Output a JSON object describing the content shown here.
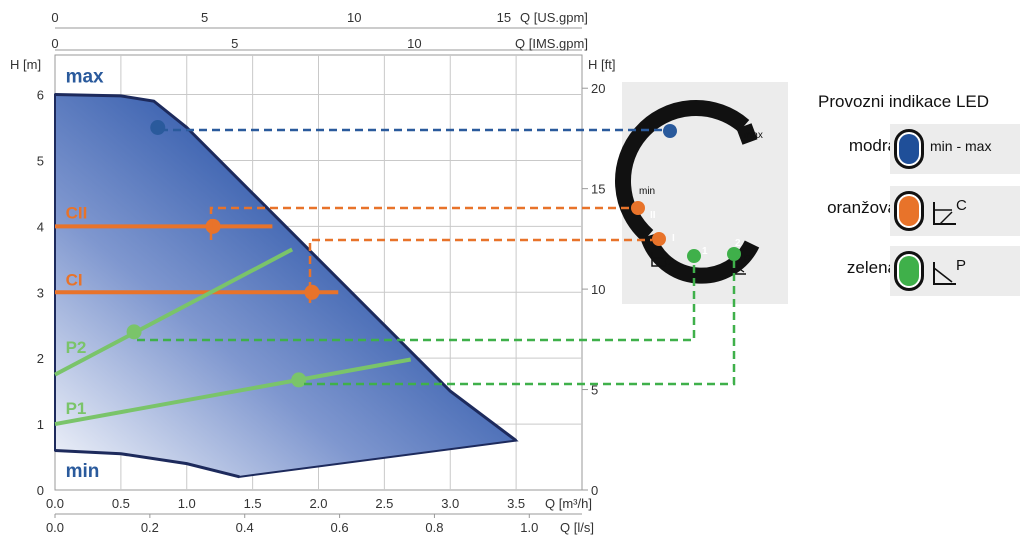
{
  "chart_data": {
    "type": "area",
    "x_axes": {
      "bottom_primary": {
        "label": "Q [m³/h]",
        "ticks": [
          "0.0",
          "0.5",
          "1.0",
          "1.5",
          "2.0",
          "2.5",
          "3.0",
          "3.5"
        ]
      },
      "bottom_secondary": {
        "label": "Q [l/s]",
        "ticks": [
          "0.0",
          "0.2",
          "0.4",
          "0.6",
          "0.8",
          "1.0"
        ]
      },
      "top_primary": {
        "label": "Q [IMS.gpm]",
        "ticks": [
          "0",
          "5",
          "10"
        ]
      },
      "top_secondary": {
        "label": "Q [US.gpm]",
        "ticks": [
          "0",
          "5",
          "10",
          "15"
        ]
      }
    },
    "y_axes": {
      "left": {
        "label": "H [m]",
        "ticks": [
          "0",
          "1",
          "2",
          "3",
          "4",
          "5",
          "6"
        ]
      },
      "right": {
        "label": "H [ft]",
        "ticks": [
          "0",
          "5",
          "10",
          "15",
          "20"
        ]
      }
    },
    "xlim": [
      0,
      4.0
    ],
    "ylim": [
      0,
      6.6
    ],
    "grid": true,
    "envelope": {
      "max_curve": [
        [
          0,
          6.0
        ],
        [
          0.5,
          5.98
        ],
        [
          0.75,
          5.9
        ],
        [
          1.0,
          5.5
        ],
        [
          1.5,
          4.5
        ],
        [
          2.0,
          3.5
        ],
        [
          2.5,
          2.5
        ],
        [
          3.0,
          1.5
        ],
        [
          3.5,
          0.75
        ]
      ],
      "min_curve": [
        [
          0,
          0.6
        ],
        [
          0.5,
          0.55
        ],
        [
          1.0,
          0.4
        ],
        [
          1.4,
          0.2
        ],
        [
          3.5,
          0.75
        ]
      ]
    },
    "series": [
      {
        "name": "max",
        "color": "#2a5a9c",
        "label_at": [
          0.05,
          6.18
        ]
      },
      {
        "name": "min",
        "color": "#2a5a9c",
        "label_at": [
          0.05,
          0.2
        ]
      },
      {
        "name": "CII",
        "color": "#e8732a",
        "label_at": [
          0.05,
          4.12
        ],
        "points": [
          [
            0,
            4.0
          ],
          [
            1.65,
            4.0
          ]
        ],
        "marker": [
          1.2,
          4.0
        ]
      },
      {
        "name": "CI",
        "color": "#e8732a",
        "label_at": [
          0.05,
          3.1
        ],
        "points": [
          [
            0,
            3.0
          ],
          [
            2.15,
            3.0
          ]
        ],
        "marker": [
          1.95,
          3.0
        ]
      },
      {
        "name": "P2",
        "color": "#7ac46a",
        "label_at": [
          0.05,
          2.08
        ],
        "points": [
          [
            0,
            1.75
          ],
          [
            1.8,
            3.65
          ]
        ],
        "marker": [
          0.6,
          2.4
        ]
      },
      {
        "name": "P1",
        "color": "#7ac46a",
        "label_at": [
          0.05,
          1.15
        ],
        "points": [
          [
            0,
            1.0
          ],
          [
            2.7,
            1.98
          ]
        ],
        "marker": [
          1.85,
          1.67
        ]
      }
    ],
    "max_marker": [
      0.78,
      5.5
    ]
  },
  "dial": {
    "label_max": "max",
    "label_min": "min",
    "seg_II": "II",
    "seg_I": "I",
    "seg_1": "1",
    "seg_2": "2"
  },
  "led_legend": {
    "title": "Provozni indikace LED",
    "rows": [
      {
        "name": "modrá",
        "color": "#1f4f99",
        "text": "min - max",
        "glyph": "",
        "glyph_sup": ""
      },
      {
        "name": "oranžová",
        "color": "#e8732a",
        "text": "",
        "glyph": "constant-pressure-icon",
        "glyph_sup": "C"
      },
      {
        "name": "zelená",
        "color": "#3fb04a",
        "text": "",
        "glyph": "proportional-pressure-icon",
        "glyph_sup": "P"
      }
    ]
  },
  "colors": {
    "grid": "#c9c9c9",
    "area_dark": "#1a3f8f",
    "area_light": "#f4f6fb",
    "outline": "#1d2a5c",
    "orange_dash": "#e8732a",
    "green_dash": "#3fb04a",
    "blue_dash": "#2a5a9c"
  }
}
